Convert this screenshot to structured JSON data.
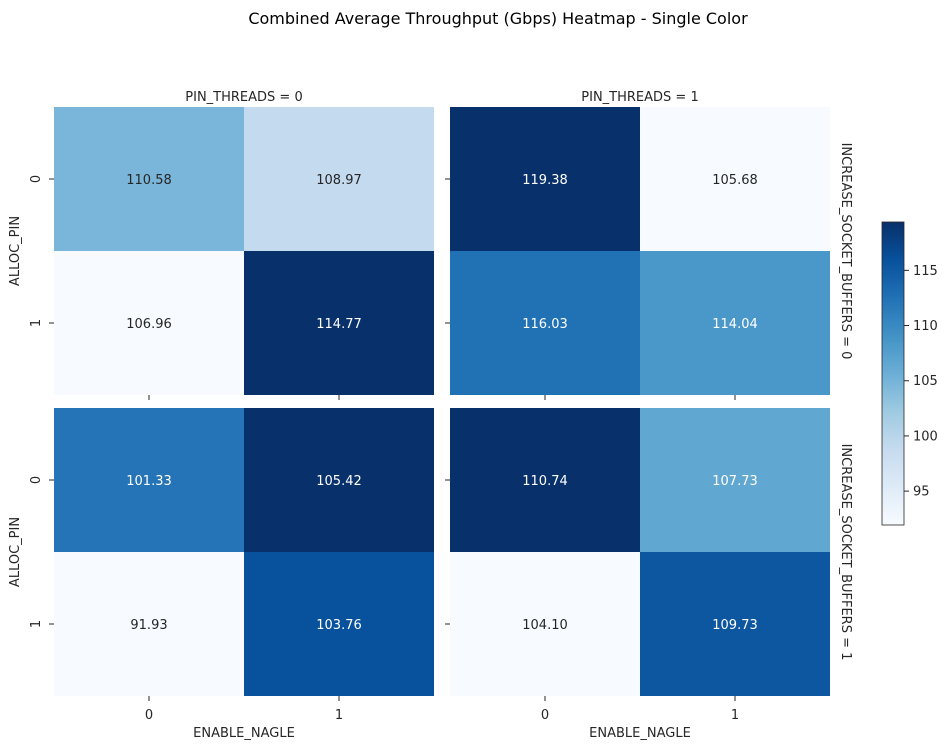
{
  "chart_data": {
    "type": "heatmap",
    "title": "Combined Average Throughput (Gbps) Heatmap - Single Color",
    "xlabel": "ENABLE_NAGLE",
    "ylabel": "ALLOC_PIN",
    "x_categories": [
      "0",
      "1"
    ],
    "y_categories": [
      "0",
      "1"
    ],
    "colormap": "Blues",
    "colorbar": {
      "ticks": [
        95,
        100,
        105,
        110,
        115
      ]
    },
    "col_facet_titles": [
      "PIN_THREADS = 0",
      "PIN_THREADS = 1"
    ],
    "row_facet_titles": [
      "INCREASE_SOCKET_BUFFERS = 0",
      "INCREASE_SOCKET_BUFFERS = 1"
    ],
    "panels": [
      {
        "pin_threads": 0,
        "increase_socket_buffers": 0,
        "values": [
          [
            110.58,
            108.97
          ],
          [
            106.96,
            114.77
          ]
        ],
        "colors": [
          [
            "#7ab6d9",
            "#c4daee"
          ],
          [
            "#f7fbff",
            "#08306b"
          ]
        ]
      },
      {
        "pin_threads": 1,
        "increase_socket_buffers": 0,
        "values": [
          [
            119.38,
            105.68
          ],
          [
            116.03,
            114.04
          ]
        ],
        "colors": [
          [
            "#08306b",
            "#f7fbff"
          ],
          [
            "#2171b5",
            "#4a98c9"
          ]
        ]
      },
      {
        "pin_threads": 0,
        "increase_socket_buffers": 1,
        "values": [
          [
            101.33,
            105.42
          ],
          [
            91.93,
            103.76
          ]
        ],
        "colors": [
          [
            "#2474b7",
            "#08306b"
          ],
          [
            "#f7fbff",
            "#08519c"
          ]
        ]
      },
      {
        "pin_threads": 1,
        "increase_socket_buffers": 1,
        "values": [
          [
            110.74,
            107.73
          ],
          [
            104.1,
            109.73
          ]
        ],
        "colors": [
          [
            "#08306b",
            "#60a7d2"
          ],
          [
            "#f7fbff",
            "#0d57a1"
          ]
        ]
      }
    ]
  },
  "colors": {
    "light": "#f7fbff",
    "dark": "#08306b",
    "text_dark": "#262626",
    "text_light": "#ffffff"
  }
}
